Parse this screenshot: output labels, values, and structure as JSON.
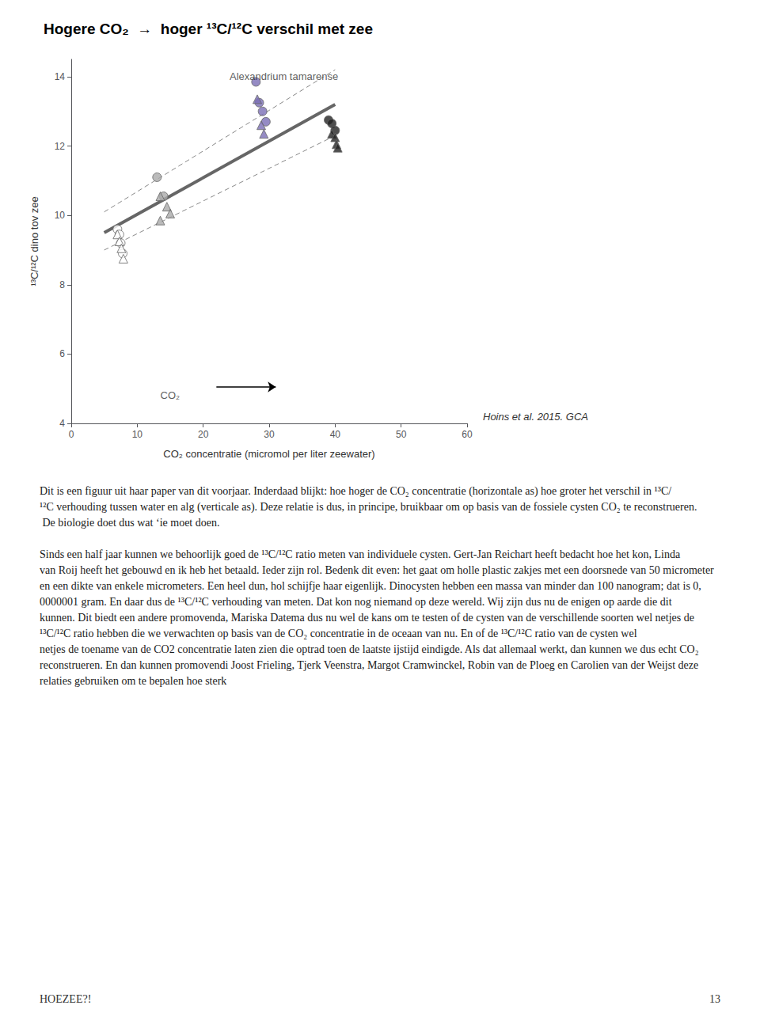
{
  "chart_data": {
    "type": "scatter",
    "title": "Hogere CO₂  →  hoger ¹³C/¹²C verschil met zee",
    "xlabel": "CO₂ concentratie (micromol per liter zeewater)",
    "ylabel": "¹³C/¹²C dino tov zee",
    "xlim": [
      0,
      60
    ],
    "ylim": [
      4,
      14.5
    ],
    "xticks": [
      0,
      10,
      20,
      30,
      40,
      50,
      60
    ],
    "yticks": [
      4,
      6,
      8,
      10,
      12,
      14
    ],
    "grid": false,
    "series": [
      {
        "type": "line",
        "color": "#666666",
        "line_style": "solid",
        "x": [
          5,
          40
        ],
        "values": [
          9.5,
          13.2
        ]
      },
      {
        "type": "line",
        "color": "#888888",
        "line_style": "dashed",
        "x": [
          5,
          40
        ],
        "values": [
          10.1,
          14.2
        ]
      },
      {
        "type": "line",
        "color": "#888888",
        "line_style": "dashed",
        "x": [
          5,
          40
        ],
        "values": [
          9.0,
          12.3
        ]
      },
      {
        "type": "scatter",
        "color": "#ffffff",
        "marker": "circle",
        "x": [
          7,
          7.3,
          7.5,
          7.8
        ],
        "values": [
          9.6,
          9.45,
          9.2,
          8.9
        ]
      },
      {
        "type": "scatter",
        "color": "#ffffff",
        "marker": "triangle",
        "x": [
          7.0,
          7.3,
          7.6,
          7.9
        ],
        "values": [
          9.45,
          9.25,
          9.05,
          8.75
        ]
      },
      {
        "type": "scatter",
        "color": "#aaaaaa",
        "marker": "circle",
        "x": [
          13,
          14
        ],
        "values": [
          11.1,
          10.55
        ]
      },
      {
        "type": "scatter",
        "color": "#aaaaaa",
        "marker": "triangle",
        "x": [
          13.5,
          14.5,
          15,
          13.5
        ],
        "values": [
          10.55,
          10.25,
          10.05,
          9.85
        ]
      },
      {
        "type": "scatter",
        "color": "#7b6eb5",
        "marker": "circle",
        "x": [
          28,
          28.5,
          29,
          29.5
        ],
        "values": [
          13.85,
          13.25,
          13.0,
          12.7
        ]
      },
      {
        "type": "scatter",
        "color": "#7b6eb5",
        "marker": "triangle",
        "x": [
          28.2,
          28.8,
          29.2
        ],
        "values": [
          13.35,
          12.6,
          12.35
        ]
      },
      {
        "type": "scatter",
        "color": "#222222",
        "marker": "circle",
        "x": [
          39,
          39.5,
          40
        ],
        "values": [
          12.75,
          12.65,
          12.45
        ]
      },
      {
        "type": "scatter",
        "color": "#222222",
        "marker": "triangle",
        "x": [
          39.5,
          40,
          40.2,
          40.4
        ],
        "values": [
          12.35,
          12.25,
          12.05,
          11.95
        ]
      }
    ],
    "annotations": [
      {
        "text": "Alexandrium tamarense",
        "x": 24,
        "y": 14.0
      },
      {
        "text": "CO₂",
        "x": 13.5,
        "y": 4.82,
        "arrow_from": [
          22,
          5.05
        ],
        "arrow_to": [
          31,
          5.05
        ]
      }
    ],
    "citation": "Hoins et al. 2015. GCA",
    "body_paragraphs": [
      "Dit is een figuur uit haar paper van dit voorjaar. Inderdaad blijkt: hoe hoger de CO₂ concentratie (horizontale as) hoe groter het verschil in ¹³C/¹²C verhouding tussen water en alg (verticale as). Deze relatie is dus, in principe, bruikbaar om op basis van de fossiele cysten CO₂ te reconstrueren. De biologie doet dus wat ‘ie moet doen.",
      "Sinds een half jaar kunnen we behoorlijk goed de ¹³C/¹²C ratio meten van individuele cysten. Gert-Jan Reichart heeft bedacht hoe het kon, Linda van Roij heeft het gebouwd en ik heb het betaald. Ieder zijn rol. Bedenk dit even: het gaat om holle plastic zakjes met een doorsnede van 50 micrometer en een dikte van enkele micrometers. Een heel dun, hol schijfje haar eigenlijk. Dinocysten hebben een massa van minder dan 100 nanogram; dat is 0,0000001 gram. En daar dus de ¹³C/¹²C verhouding van meten. Dat kon nog niemand op deze wereld. Wij zijn dus nu de enigen op aarde die dit kunnen. Dit biedt een andere promovenda, Mariska Datema dus nu wel de kans om te testen of de cysten van de verschillende soorten wel netjes de ¹³C/¹²C ratio hebben die we verwachten op basis van de CO₂ concentratie in de oceaan van nu. En of de ¹³C/¹²C ratio van de cysten wel netjes de toename van de CO2 concentratie laten zien die optrad toen de laatste ijstijd eindigde. Als dat allemaal werkt, dan kunnen we dus echt CO₂ reconstrueren. En dan kunnen promovendi Joost Frieling, Tjerk Veenstra, Margot Cramwinckel, Robin van de Ploeg en Carolien van der Weijst deze relaties gebruiken om te bepalen hoe sterk"
    ],
    "footer_left": "HOEZEE?!",
    "footer_right": "13"
  }
}
